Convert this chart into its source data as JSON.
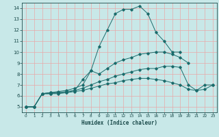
{
  "xlabel": "Humidex (Indice chaleur)",
  "xlim": [
    -0.5,
    23.5
  ],
  "ylim": [
    4.5,
    14.5
  ],
  "xticks": [
    0,
    1,
    2,
    3,
    4,
    5,
    6,
    7,
    8,
    9,
    10,
    11,
    12,
    13,
    14,
    15,
    16,
    17,
    18,
    19,
    20,
    21,
    22,
    23
  ],
  "yticks": [
    5,
    6,
    7,
    8,
    9,
    10,
    11,
    12,
    13,
    14
  ],
  "background_color": "#c8e8e8",
  "grid_color": "#e8a8a8",
  "line_color": "#1a6b6b",
  "lines": [
    {
      "x": [
        0,
        1,
        2,
        3,
        4,
        5,
        6,
        7,
        8,
        9,
        10,
        11,
        12,
        13,
        14,
        15,
        16,
        17,
        18,
        19
      ],
      "y": [
        5,
        5,
        6.2,
        6.2,
        6.3,
        6.3,
        6.5,
        7.5,
        8.3,
        10.5,
        12.0,
        13.5,
        13.9,
        13.9,
        14.2,
        13.5,
        11.8,
        11.0,
        10.0,
        10.0
      ]
    },
    {
      "x": [
        0,
        1,
        2,
        3,
        4,
        5,
        6,
        7,
        8,
        9,
        10,
        11,
        12,
        13,
        14,
        15,
        16,
        17,
        18,
        19,
        20
      ],
      "y": [
        5,
        5,
        6.2,
        6.3,
        6.4,
        6.5,
        6.7,
        7.0,
        8.3,
        8.0,
        8.5,
        9.0,
        9.3,
        9.5,
        9.8,
        9.9,
        10.0,
        10.0,
        9.8,
        9.5,
        9.0
      ]
    },
    {
      "x": [
        0,
        1,
        2,
        3,
        4,
        5,
        6,
        7,
        8,
        9,
        10,
        11,
        12,
        13,
        14,
        15,
        16,
        17,
        18,
        19,
        20,
        21,
        22,
        23
      ],
      "y": [
        5,
        5,
        6.2,
        6.3,
        6.3,
        6.4,
        6.5,
        6.7,
        7.0,
        7.3,
        7.5,
        7.8,
        8.0,
        8.2,
        8.4,
        8.5,
        8.5,
        8.7,
        8.7,
        8.6,
        7.0,
        6.5,
        7.0,
        7.0
      ]
    },
    {
      "x": [
        0,
        1,
        2,
        3,
        4,
        5,
        6,
        7,
        8,
        9,
        10,
        11,
        12,
        13,
        14,
        15,
        16,
        17,
        18,
        19,
        20,
        21,
        22,
        23
      ],
      "y": [
        5,
        5,
        6.2,
        6.2,
        6.2,
        6.3,
        6.4,
        6.5,
        6.7,
        6.9,
        7.1,
        7.2,
        7.4,
        7.5,
        7.6,
        7.6,
        7.5,
        7.4,
        7.2,
        7.0,
        6.6,
        6.5,
        6.6,
        7.0
      ]
    }
  ]
}
